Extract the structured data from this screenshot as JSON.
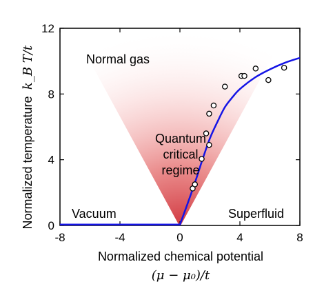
{
  "chart_data": {
    "type": "scatter",
    "xlabel": "Normalized chemical potential",
    "xlabel_math": "(μ − μ₀)/t",
    "ylabel": "Normalized temperature",
    "ylabel_math": "k_B T/t",
    "xlim": [
      -8,
      8
    ],
    "ylim": [
      0,
      12
    ],
    "x_ticks": [
      -8,
      -4,
      0,
      4,
      8
    ],
    "y_ticks": [
      0,
      4,
      8,
      12
    ],
    "x_tick_labels": [
      "-8",
      "-4",
      "0",
      "4",
      "8"
    ],
    "y_tick_labels": [
      "0",
      "4",
      "8",
      "12"
    ],
    "grid": false,
    "region_labels": {
      "normal_gas": "Normal gas",
      "quantum_critical_1": "Quantum",
      "quantum_critical_2": "critical",
      "quantum_critical_3": "regime",
      "vacuum": "Vacuum",
      "superfluid": "Superfluid"
    },
    "shading": {
      "description": "red fan-shaped shading centered at x=0 widening with temperature",
      "color": "#d02020"
    },
    "boundary_line": {
      "color": "#1414e6",
      "points": [
        [
          -8,
          0.05
        ],
        [
          0,
          0.05
        ],
        [
          0.5,
          1.3
        ],
        [
          1,
          2.6
        ],
        [
          1.5,
          4.0
        ],
        [
          2,
          5.3
        ],
        [
          2.5,
          6.3
        ],
        [
          3,
          7.2
        ],
        [
          3.5,
          7.8
        ],
        [
          4,
          8.3
        ],
        [
          5,
          9.0
        ],
        [
          6,
          9.5
        ],
        [
          7,
          9.9
        ],
        [
          8,
          10.2
        ]
      ]
    },
    "points": [
      {
        "x": 0.85,
        "y": 2.25
      },
      {
        "x": 1.0,
        "y": 2.5
      },
      {
        "x": 1.45,
        "y": 4.05
      },
      {
        "x": 1.95,
        "y": 4.9
      },
      {
        "x": 1.75,
        "y": 5.6
      },
      {
        "x": 1.95,
        "y": 6.8
      },
      {
        "x": 2.25,
        "y": 7.3
      },
      {
        "x": 3.0,
        "y": 8.45
      },
      {
        "x": 4.1,
        "y": 9.1
      },
      {
        "x": 4.3,
        "y": 9.1
      },
      {
        "x": 5.05,
        "y": 9.55
      },
      {
        "x": 5.9,
        "y": 8.85
      },
      {
        "x": 6.95,
        "y": 9.6
      }
    ]
  }
}
